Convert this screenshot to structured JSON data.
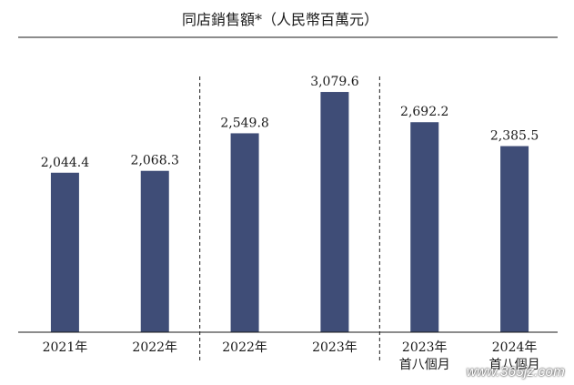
{
  "chart_data": {
    "type": "bar",
    "title": "同店銷售額*（人民幣百萬元）",
    "categories": [
      {
        "line1": "2021年",
        "line2": ""
      },
      {
        "line1": "2022年",
        "line2": ""
      },
      {
        "line1": "2022年",
        "line2": ""
      },
      {
        "line1": "2023年",
        "line2": ""
      },
      {
        "line1": "2023年",
        "line2": "首八個月"
      },
      {
        "line1": "2024年",
        "line2": "首八個月"
      }
    ],
    "values": [
      2044.4,
      2068.3,
      2549.8,
      3079.6,
      2692.2,
      2385.5
    ],
    "value_labels": [
      "2,044.4",
      "2,068.3",
      "2,549.8",
      "3,079.6",
      "2,692.2",
      "2,385.5"
    ],
    "ylim": [
      0,
      3500
    ],
    "xlabel": "",
    "ylabel": "",
    "grid": false,
    "bar_color": "#3f4d77",
    "group_separators_after_index": [
      1,
      3
    ]
  },
  "watermark": "www.365jz.com"
}
